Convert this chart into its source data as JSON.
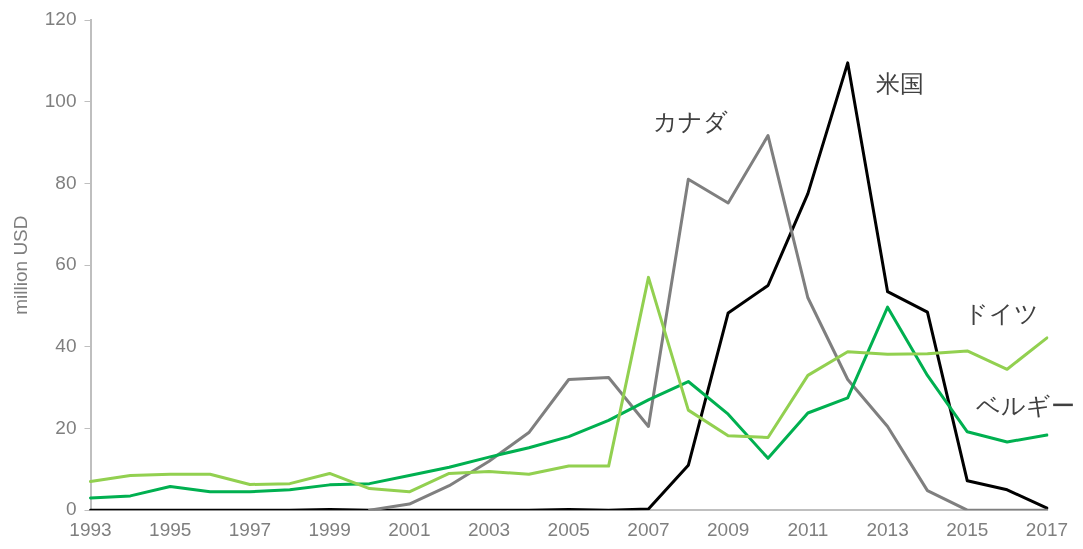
{
  "chart_data": {
    "type": "line",
    "ylabel": "million USD",
    "categories": [
      "1993",
      null,
      "1995",
      null,
      "1997",
      null,
      "1999",
      null,
      "2001",
      null,
      "2003",
      null,
      "2005",
      null,
      "2007",
      null,
      "2009",
      null,
      "2011",
      null,
      "2013",
      null,
      "2015",
      null,
      "2017"
    ],
    "ylim": [
      0,
      120
    ],
    "yticks": [
      0,
      20,
      40,
      60,
      80,
      100,
      120
    ],
    "grid": false,
    "legend": false,
    "marker": "none",
    "line_style": "solid",
    "series": [
      {
        "name": "ドイツ",
        "color": "#92d050",
        "values": [
          7,
          8.5,
          8.8,
          8.8,
          6.3,
          6.5,
          9,
          5.3,
          4.5,
          9,
          9.5,
          8.8,
          10.8,
          10.8,
          57,
          24.5,
          18.2,
          17.8,
          33,
          38.8,
          38.2,
          38.3,
          39,
          34.5,
          42.2
        ]
      },
      {
        "name": "ベルギー",
        "color": "#00b050",
        "values": [
          3,
          3.5,
          5.8,
          4.5,
          4.5,
          5,
          6.2,
          6.5,
          8.5,
          10.5,
          13,
          15.3,
          18,
          22,
          27,
          31.5,
          23.5,
          12.7,
          23.8,
          27.5,
          49.7,
          33,
          19.2,
          16.7,
          18.4
        ]
      },
      {
        "name": "カナダ",
        "color": "#7f7f7f",
        "values": [
          null,
          null,
          null,
          null,
          null,
          null,
          null,
          0,
          1.5,
          6,
          12,
          19,
          32,
          32.5,
          20.5,
          81,
          75.2,
          91.7,
          52,
          32,
          20.5,
          4.8,
          0,
          0,
          0
        ]
      },
      {
        "name": "米国",
        "color": "#000000",
        "values": [
          0,
          0,
          0,
          0,
          0,
          0,
          0.2,
          0,
          0,
          0,
          0,
          0,
          0.2,
          0,
          0.3,
          11,
          48.3,
          55,
          77.5,
          109.5,
          53.5,
          48.5,
          7.2,
          5,
          0.5
        ]
      }
    ]
  }
}
